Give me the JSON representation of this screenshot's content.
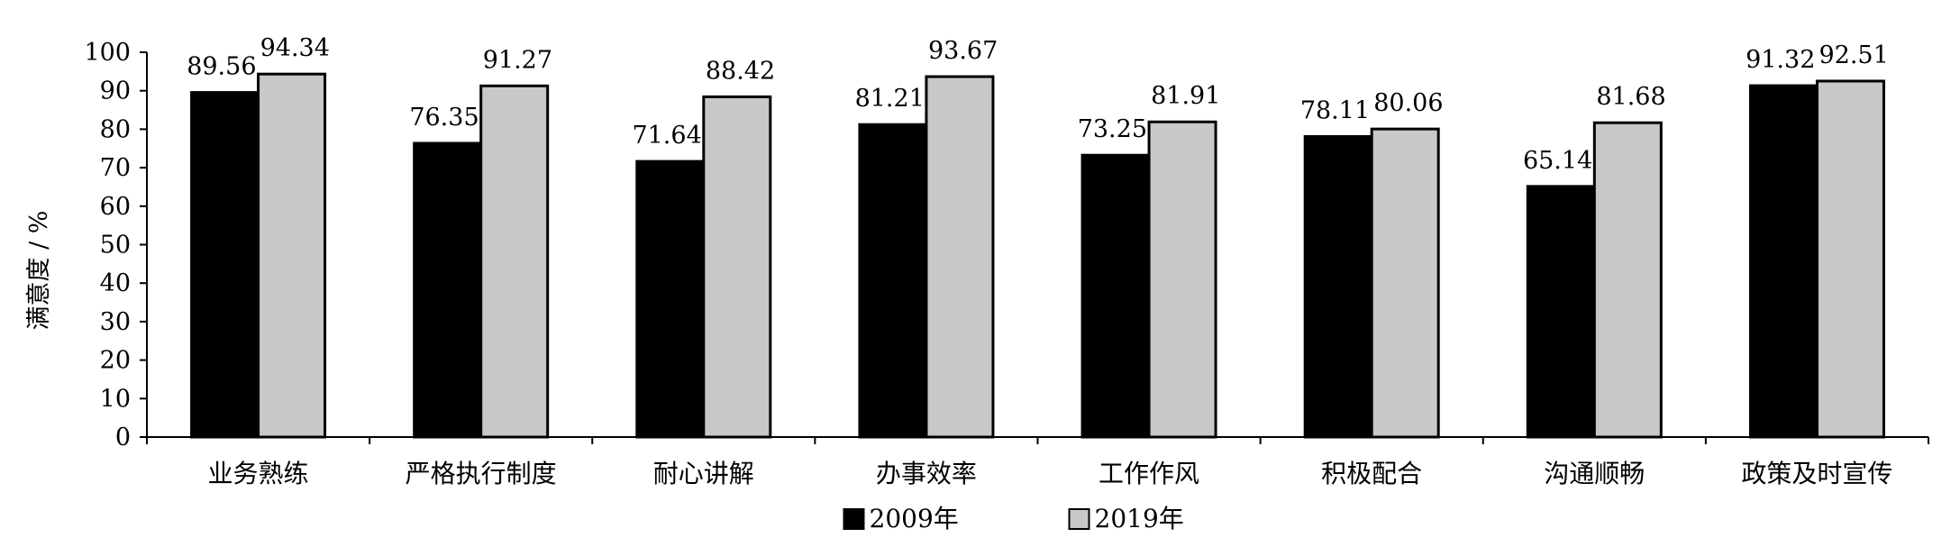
{
  "chart_data": {
    "type": "bar",
    "categories": [
      "业务熟练",
      "严格执行制度",
      "耐心讲解",
      "办事效率",
      "工作作风",
      "积极配合",
      "沟通顺畅",
      "政策及时宣传"
    ],
    "series": [
      {
        "name": "2009年",
        "values": [
          89.56,
          76.35,
          71.64,
          81.21,
          73.25,
          78.11,
          65.14,
          91.32
        ],
        "labels": [
          "89.56",
          "76.35",
          "71.64",
          "81.21",
          "73.25",
          "78.11",
          "65.14",
          "91.32"
        ],
        "color": "#000000"
      },
      {
        "name": "2019年",
        "values": [
          94.34,
          91.27,
          88.42,
          93.67,
          81.91,
          80.06,
          81.68,
          92.51
        ],
        "labels": [
          "94.34",
          "91.27",
          "88.42",
          "93.67",
          "81.91",
          "80.06",
          "81.68",
          "92.51"
        ],
        "color": "#c8c8c8"
      }
    ],
    "title": "",
    "xlabel": "",
    "ylabel": "满意度 / %",
    "ylim": [
      0,
      100
    ],
    "yticks": [
      0,
      10,
      20,
      30,
      40,
      50,
      60,
      70,
      80,
      90,
      100
    ],
    "grid": false,
    "legend": "bottom-center"
  }
}
